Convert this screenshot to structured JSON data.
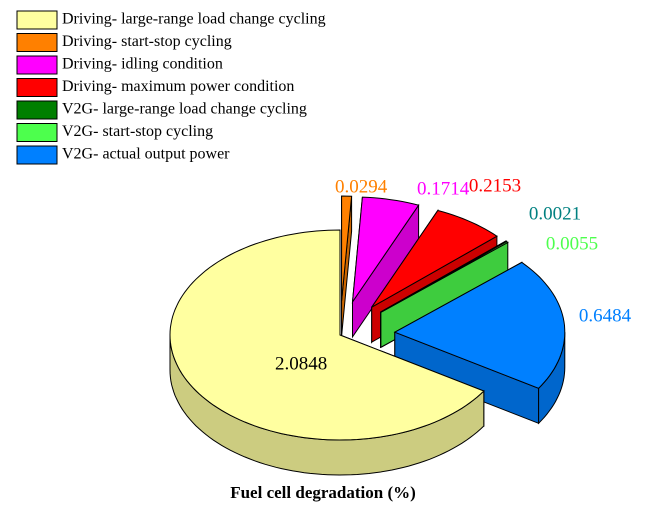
{
  "chart_data": {
    "type": "pie",
    "title": "Fuel cell degradation (%)",
    "categories": [
      "Driving- large-range load change cycling",
      "Driving- start-stop cycling",
      "Driving- idling condition",
      "Driving- maximum power condition",
      "V2G- large-range load change cycling",
      "V2G- start-stop cycling",
      "V2G- actual output power"
    ],
    "values": [
      2.0848,
      0.0294,
      0.1714,
      0.2153,
      0.0021,
      0.0055,
      0.6484
    ],
    "colors": [
      "#ffffa0",
      "#ff8000",
      "#ff00ff",
      "#ff0000",
      "#007f00",
      "#4dff4d",
      "#0080ff"
    ],
    "legend": "upper left"
  }
}
